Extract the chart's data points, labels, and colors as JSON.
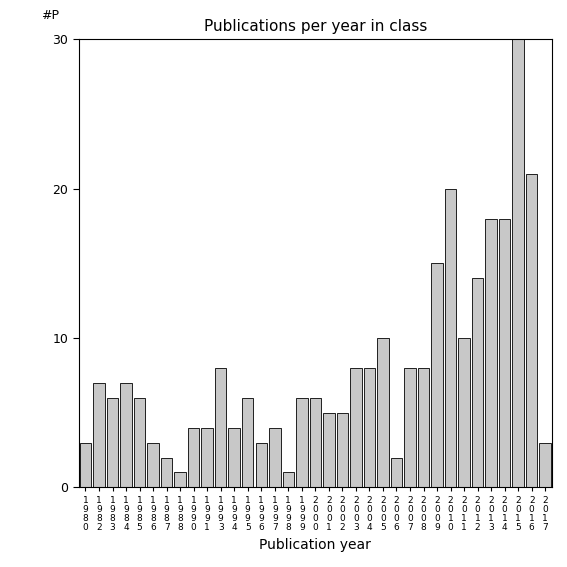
{
  "title": "Publications per year in class",
  "xlabel": "Publication year",
  "ylabel": "#P",
  "bar_color": "#c8c8c8",
  "bar_edgecolor": "#000000",
  "years": [
    1980,
    1982,
    1983,
    1984,
    1985,
    1986,
    1987,
    1988,
    1990,
    1991,
    1993,
    1994,
    1995,
    1996,
    1997,
    1998,
    1999,
    2000,
    2001,
    2002,
    2003,
    2004,
    2005,
    2006,
    2007,
    2008,
    2009,
    2010,
    2011,
    2012,
    2013,
    2014,
    2015,
    2016,
    2017
  ],
  "values": [
    3,
    7,
    6,
    7,
    6,
    3,
    2,
    1,
    4,
    4,
    8,
    4,
    6,
    3,
    4,
    1,
    6,
    6,
    5,
    5,
    8,
    8,
    10,
    2,
    8,
    8,
    15,
    20,
    10,
    14,
    18,
    18,
    30,
    21,
    3
  ],
  "ylim": [
    0,
    30
  ],
  "yticks": [
    0,
    10,
    20,
    30
  ],
  "figsize": [
    5.67,
    5.67
  ],
  "dpi": 100
}
